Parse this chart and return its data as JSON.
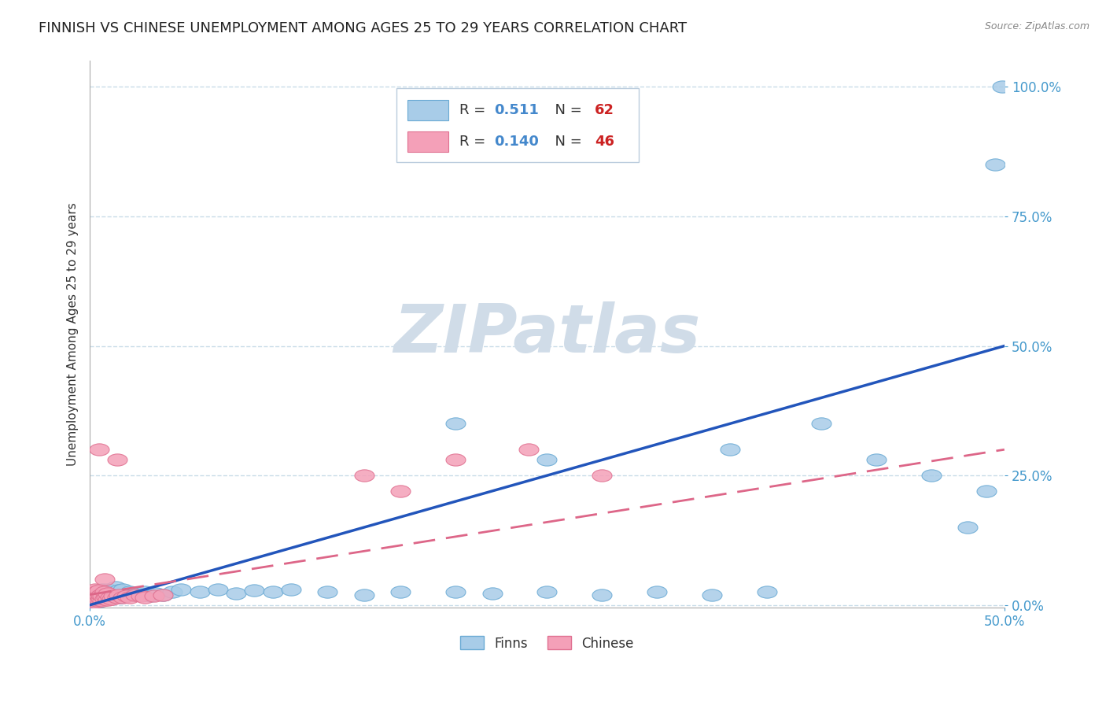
{
  "title": "FINNISH VS CHINESE UNEMPLOYMENT AMONG AGES 25 TO 29 YEARS CORRELATION CHART",
  "source": "Source: ZipAtlas.com",
  "ylabel": "Unemployment Among Ages 25 to 29 years",
  "xlim": [
    0.0,
    0.5
  ],
  "ylim": [
    -0.005,
    1.05
  ],
  "xtick_positions": [
    0.0,
    0.5
  ],
  "xticklabels": [
    "0.0%",
    "50.0%"
  ],
  "ytick_positions": [
    0.0,
    0.25,
    0.5,
    0.75,
    1.0
  ],
  "yticklabels": [
    "0.0%",
    "25.0%",
    "50.0%",
    "75.0%",
    "100.0%"
  ],
  "finns_color": "#a8cce8",
  "finns_edge_color": "#6aaad4",
  "chinese_color": "#f4a0b8",
  "chinese_edge_color": "#e07090",
  "regression_finns_color": "#2255bb",
  "regression_chinese_color": "#dd6688",
  "grid_color": "#c8dce8",
  "watermark_color": "#d0dce8",
  "watermark_text": "ZIPatlas",
  "legend_R_finns": "0.511",
  "legend_N_finns": "62",
  "legend_R_chinese": "0.140",
  "legend_N_chinese": "46",
  "legend_text_color_R": "#4488cc",
  "legend_text_color_N": "#cc2222",
  "finns_x": [
    0.001,
    0.002,
    0.002,
    0.003,
    0.003,
    0.004,
    0.004,
    0.005,
    0.005,
    0.006,
    0.006,
    0.007,
    0.007,
    0.008,
    0.008,
    0.009,
    0.01,
    0.01,
    0.011,
    0.012,
    0.013,
    0.014,
    0.015,
    0.016,
    0.017,
    0.018,
    0.02,
    0.022,
    0.025,
    0.028,
    0.03,
    0.033,
    0.036,
    0.04,
    0.045,
    0.05,
    0.06,
    0.07,
    0.08,
    0.09,
    0.1,
    0.11,
    0.13,
    0.15,
    0.17,
    0.2,
    0.22,
    0.25,
    0.28,
    0.31,
    0.34,
    0.37,
    0.2,
    0.25,
    0.35,
    0.4,
    0.43,
    0.46,
    0.48,
    0.49,
    0.495,
    0.499
  ],
  "finns_y": [
    0.005,
    0.008,
    0.015,
    0.01,
    0.02,
    0.005,
    0.018,
    0.012,
    0.025,
    0.008,
    0.022,
    0.015,
    0.03,
    0.01,
    0.025,
    0.018,
    0.012,
    0.03,
    0.02,
    0.025,
    0.015,
    0.035,
    0.02,
    0.028,
    0.015,
    0.03,
    0.018,
    0.025,
    0.022,
    0.02,
    0.025,
    0.018,
    0.022,
    0.02,
    0.025,
    0.03,
    0.025,
    0.03,
    0.022,
    0.028,
    0.025,
    0.03,
    0.025,
    0.02,
    0.025,
    0.025,
    0.022,
    0.025,
    0.02,
    0.025,
    0.02,
    0.025,
    0.35,
    0.28,
    0.3,
    0.35,
    0.28,
    0.25,
    0.15,
    0.22,
    0.85,
    1.0
  ],
  "chinese_x": [
    0.001,
    0.001,
    0.001,
    0.002,
    0.002,
    0.002,
    0.003,
    0.003,
    0.003,
    0.003,
    0.004,
    0.004,
    0.004,
    0.005,
    0.005,
    0.005,
    0.006,
    0.006,
    0.007,
    0.007,
    0.008,
    0.008,
    0.009,
    0.01,
    0.01,
    0.011,
    0.012,
    0.013,
    0.015,
    0.016,
    0.018,
    0.02,
    0.022,
    0.025,
    0.028,
    0.03,
    0.035,
    0.04,
    0.15,
    0.17,
    0.2,
    0.24,
    0.28,
    0.015,
    0.008,
    0.005
  ],
  "chinese_y": [
    0.005,
    0.01,
    0.02,
    0.008,
    0.015,
    0.025,
    0.005,
    0.012,
    0.02,
    0.03,
    0.008,
    0.015,
    0.025,
    0.01,
    0.018,
    0.028,
    0.012,
    0.02,
    0.008,
    0.018,
    0.012,
    0.025,
    0.015,
    0.01,
    0.022,
    0.015,
    0.012,
    0.018,
    0.015,
    0.02,
    0.015,
    0.018,
    0.015,
    0.02,
    0.018,
    0.015,
    0.018,
    0.02,
    0.25,
    0.22,
    0.28,
    0.3,
    0.25,
    0.28,
    0.05,
    0.3
  ],
  "background_color": "#ffffff",
  "title_fontsize": 13,
  "axis_label_fontsize": 11,
  "tick_fontsize": 12,
  "legend_fontsize": 13,
  "finns_regression_x0": 0.0,
  "finns_regression_y0": 0.0,
  "finns_regression_x1": 0.5,
  "finns_regression_y1": 0.5,
  "chinese_regression_x0": 0.0,
  "chinese_regression_y0": 0.02,
  "chinese_regression_x1": 0.5,
  "chinese_regression_y1": 0.3
}
